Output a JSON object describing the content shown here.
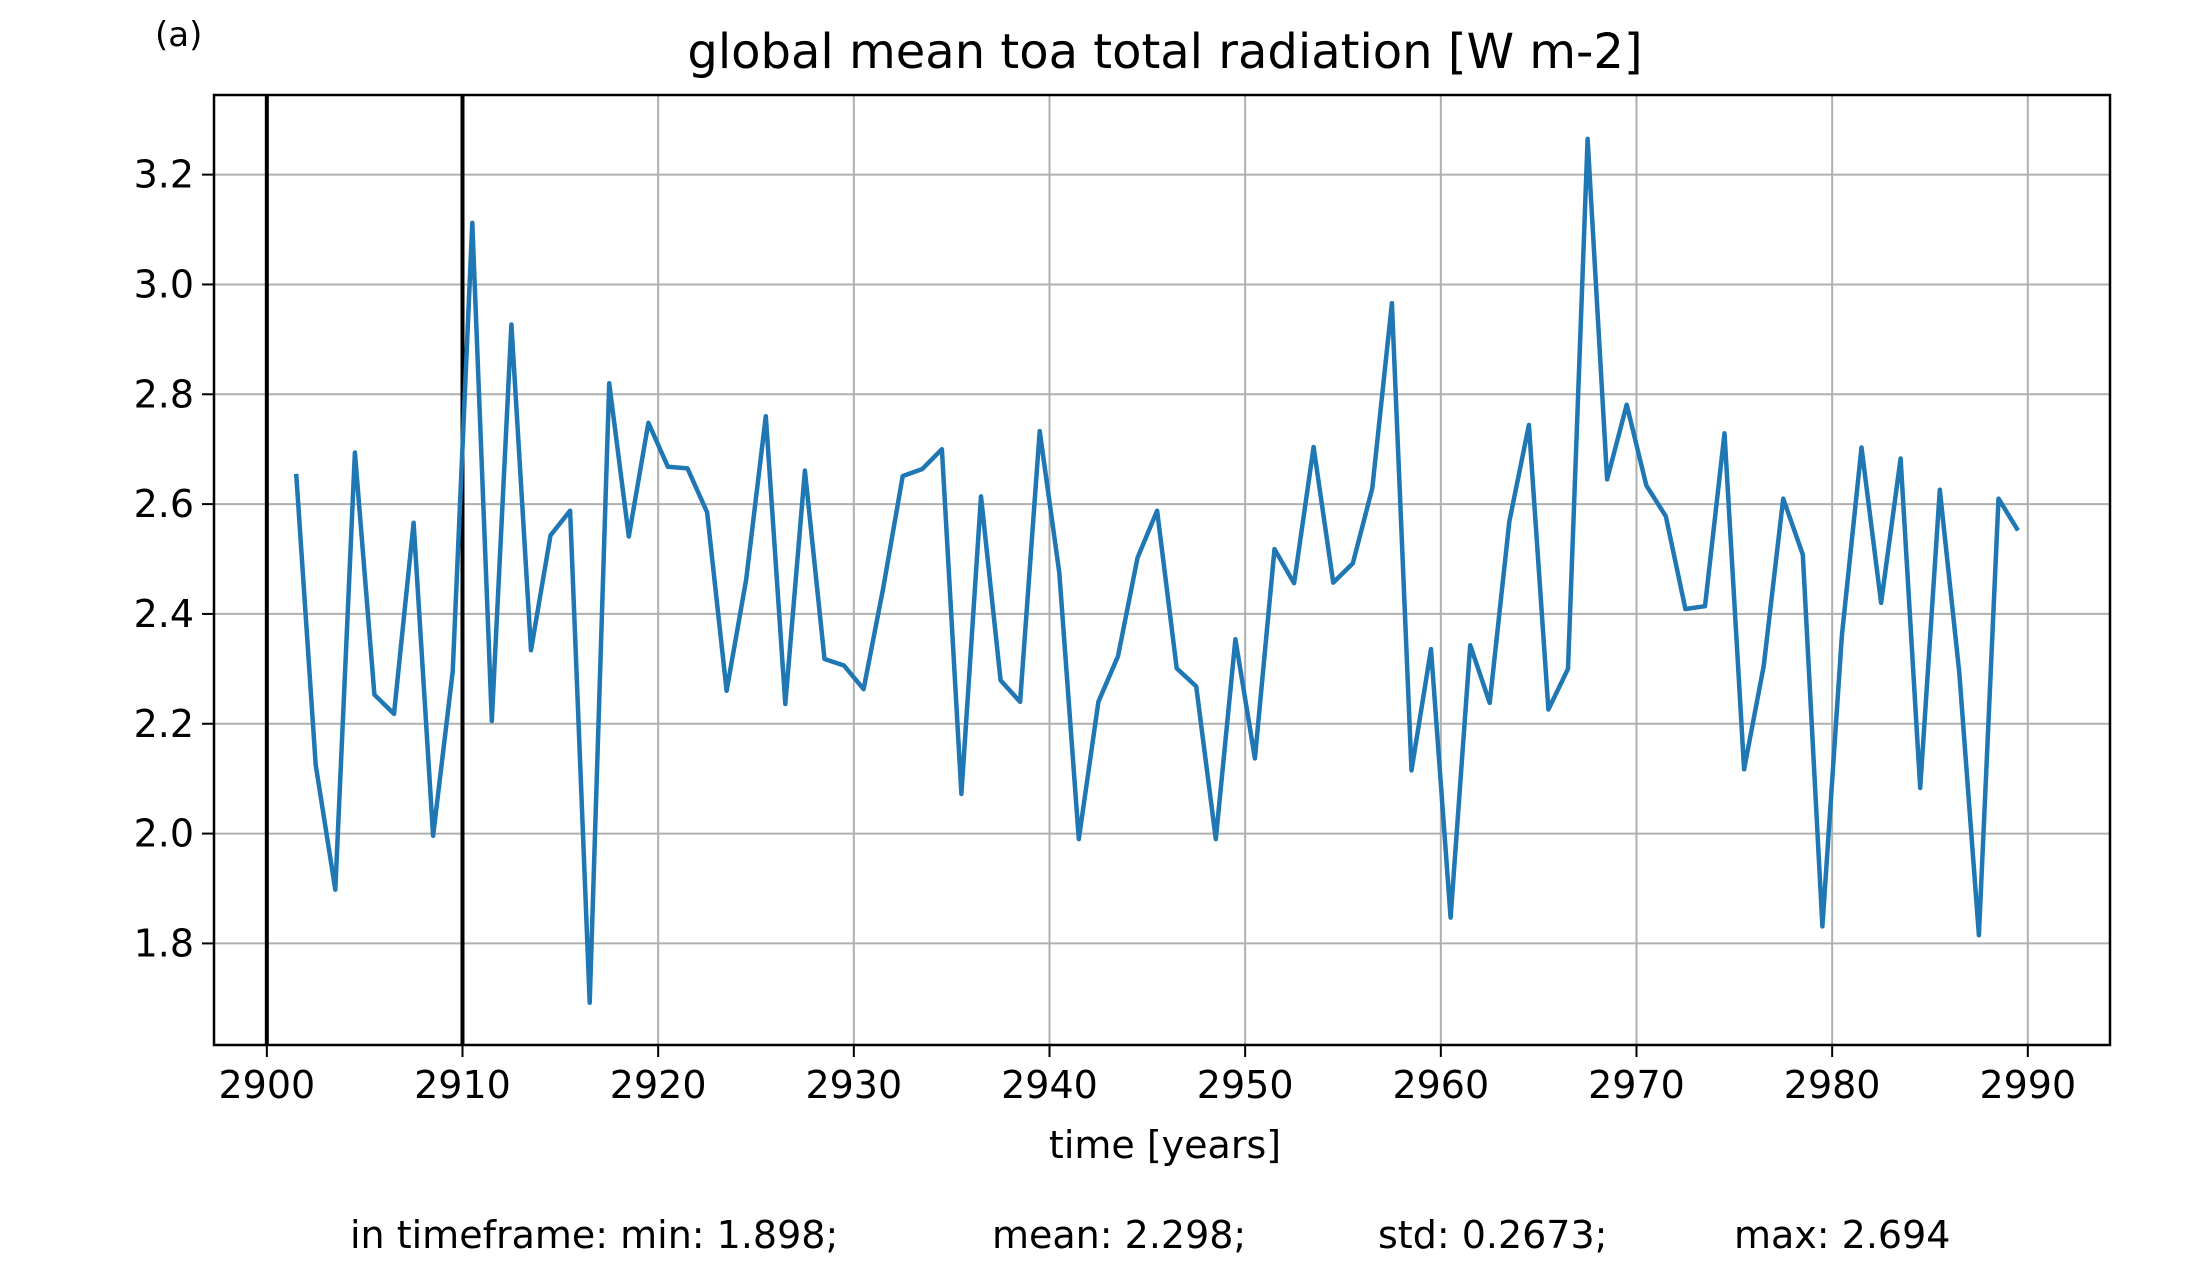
{
  "panel_label": "(a)",
  "stats": {
    "min": "in timeframe: min: 1.898;",
    "mean": "mean: 2.298;",
    "std": "std: 0.2673;",
    "max": "max: 2.694"
  },
  "colors": {
    "series": "#1f77b4",
    "grid": "#b0b0b0",
    "marker_lines": "#000000"
  },
  "chart_data": {
    "type": "line",
    "title": "global mean toa total radiation [W m-2]",
    "xlabel": "time [years]",
    "ylabel": "",
    "xlim": [
      2897.3,
      2994.2
    ],
    "ylim": [
      1.615,
      3.345
    ],
    "xticks": [
      2900,
      2910,
      2920,
      2930,
      2940,
      2950,
      2960,
      2970,
      2980,
      2990
    ],
    "yticks": [
      1.8,
      2.0,
      2.2,
      2.4,
      2.6,
      2.8,
      3.0,
      3.2
    ],
    "ytick_labels": [
      "1.8",
      "2.0",
      "2.2",
      "2.4",
      "2.6",
      "2.8",
      "3.0",
      "3.2"
    ],
    "vertical_lines": [
      2900,
      2910
    ],
    "grid": true,
    "series": [
      {
        "x": [
          2901.5,
          2902.5,
          2903.5,
          2904.5,
          2905.5,
          2906.5,
          2907.5,
          2908.5,
          2909.5,
          2910.5,
          2911.5,
          2912.5,
          2913.5,
          2914.5,
          2915.5,
          2916.5,
          2917.5,
          2918.5,
          2919.5,
          2920.5,
          2921.5,
          2922.5,
          2923.5,
          2924.5,
          2925.5,
          2926.5,
          2927.5,
          2928.5,
          2929.5,
          2930.5,
          2931.5,
          2932.5,
          2933.5,
          2934.5,
          2935.5,
          2936.5,
          2937.5,
          2938.5,
          2939.5,
          2940.5,
          2941.5,
          2942.5,
          2943.5,
          2944.5,
          2945.5,
          2946.5,
          2947.5,
          2948.5,
          2949.5,
          2950.5,
          2951.5,
          2952.5,
          2953.5,
          2954.5,
          2955.5,
          2956.5,
          2957.5,
          2958.5,
          2959.5,
          2960.5,
          2961.5,
          2962.5,
          2963.5,
          2964.5,
          2965.5,
          2966.5,
          2967.5,
          2968.5,
          2969.5,
          2970.5,
          2971.5,
          2972.5,
          2973.5,
          2974.5,
          2975.5,
          2976.5,
          2977.5,
          2978.5,
          2979.5,
          2980.5,
          2981.5,
          2982.5,
          2983.5,
          2984.5,
          2985.5,
          2986.5,
          2987.5,
          2988.5,
          2989.5
        ],
        "y": [
          2.655,
          2.125,
          1.898,
          2.694,
          2.253,
          2.218,
          2.566,
          1.996,
          2.295,
          3.112,
          2.205,
          2.927,
          2.334,
          2.543,
          2.588,
          1.692,
          2.82,
          2.541,
          2.748,
          2.668,
          2.665,
          2.585,
          2.26,
          2.463,
          2.76,
          2.236,
          2.661,
          2.318,
          2.306,
          2.263,
          2.447,
          2.651,
          2.664,
          2.7,
          2.072,
          2.614,
          2.279,
          2.24,
          2.733,
          2.475,
          1.99,
          2.24,
          2.323,
          2.502,
          2.588,
          2.301,
          2.268,
          1.99,
          2.354,
          2.137,
          2.518,
          2.456,
          2.704,
          2.457,
          2.492,
          2.629,
          2.966,
          2.115,
          2.336,
          1.847,
          2.343,
          2.238,
          2.568,
          2.744,
          2.226,
          2.3,
          3.265,
          2.645,
          2.781,
          2.634,
          2.578,
          2.409,
          2.414,
          2.729,
          2.117,
          2.305,
          2.61,
          2.508,
          1.831,
          2.361,
          2.703,
          2.42,
          2.683,
          2.083,
          2.626,
          2.293,
          1.815,
          2.61,
          2.552
        ]
      }
    ]
  }
}
